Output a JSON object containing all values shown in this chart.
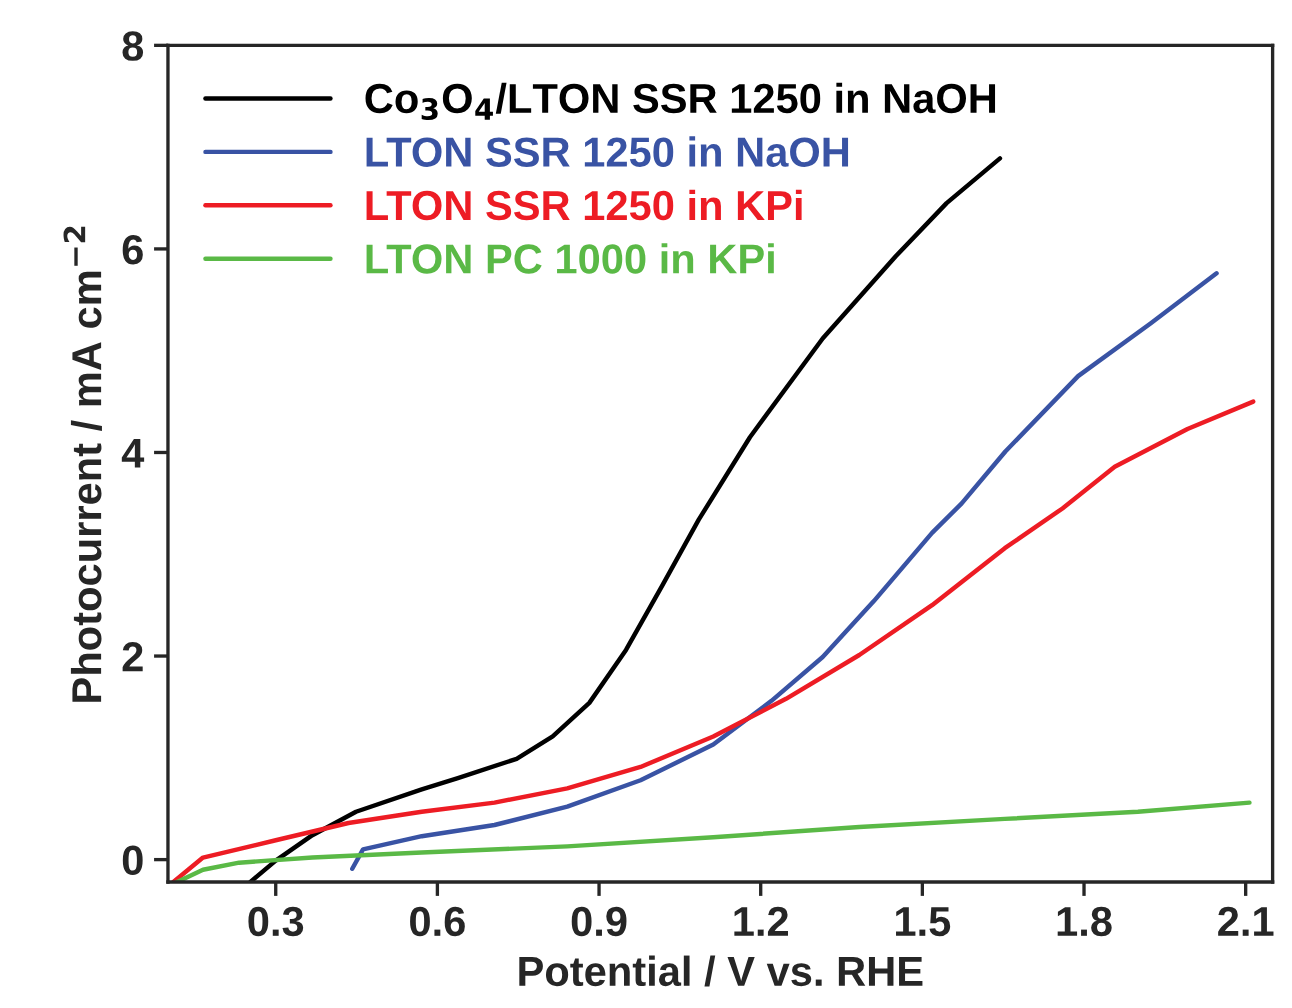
{
  "chart_data": {
    "type": "line",
    "xlabel": "Potential / V vs. RHE",
    "ylabel": "Photocurrent / mA cm$^{−2}$",
    "xlim": [
      0.1,
      2.15
    ],
    "ylim": [
      -0.22,
      8
    ],
    "xticks": [
      0.3,
      0.6,
      0.9,
      1.2,
      1.5,
      1.8,
      2.1
    ],
    "yticks": [
      0,
      2,
      4,
      6,
      8
    ],
    "legend": "top left",
    "grid": false,
    "marker": "none",
    "line_style": "solid",
    "series": [
      {
        "name": "Co$_{3}$O$_{4}$/LTON SSR 1250 in NaOH",
        "color": "#000000",
        "x": [
          0.253,
          0.3,
          0.368,
          0.449,
          0.571,
          0.638,
          0.747,
          0.814,
          0.882,
          0.95,
          1.017,
          1.085,
          1.18,
          1.315,
          1.451,
          1.545,
          1.644
        ],
        "values": [
          -0.22,
          -0.01,
          0.24,
          0.47,
          0.69,
          0.8,
          0.99,
          1.21,
          1.54,
          2.06,
          2.69,
          3.34,
          4.15,
          5.12,
          5.93,
          6.45,
          6.89
        ]
      },
      {
        "name": "LTON SSR 1250 in NaOH",
        "color": "#3953a4",
        "x": [
          0.442,
          0.462,
          0.571,
          0.706,
          0.841,
          0.977,
          1.112,
          1.22,
          1.315,
          1.41,
          1.518,
          1.573,
          1.654,
          1.789,
          1.924,
          2.046
        ],
        "values": [
          -0.09,
          0.1,
          0.23,
          0.34,
          0.52,
          0.78,
          1.13,
          1.56,
          1.99,
          2.54,
          3.21,
          3.5,
          4.01,
          4.75,
          5.27,
          5.76
        ]
      },
      {
        "name": "LTON SSR 1250 in KPi",
        "color": "#ed1c24",
        "x": [
          0.11,
          0.165,
          0.3,
          0.435,
          0.571,
          0.706,
          0.841,
          0.977,
          1.112,
          1.247,
          1.383,
          1.518,
          1.653,
          1.76,
          1.857,
          1.992,
          2.114
        ],
        "values": [
          -0.22,
          0.02,
          0.19,
          0.36,
          0.47,
          0.56,
          0.7,
          0.91,
          1.21,
          1.58,
          2.01,
          2.5,
          3.06,
          3.45,
          3.86,
          4.23,
          4.5
        ]
      },
      {
        "name": "LTON PC 1000 in KPi",
        "color": "#5ab946",
        "x": [
          0.117,
          0.165,
          0.232,
          0.368,
          0.571,
          0.841,
          1.112,
          1.383,
          1.653,
          1.9,
          2.107
        ],
        "values": [
          -0.22,
          -0.1,
          -0.03,
          0.02,
          0.07,
          0.13,
          0.22,
          0.32,
          0.4,
          0.47,
          0.56
        ]
      }
    ]
  }
}
